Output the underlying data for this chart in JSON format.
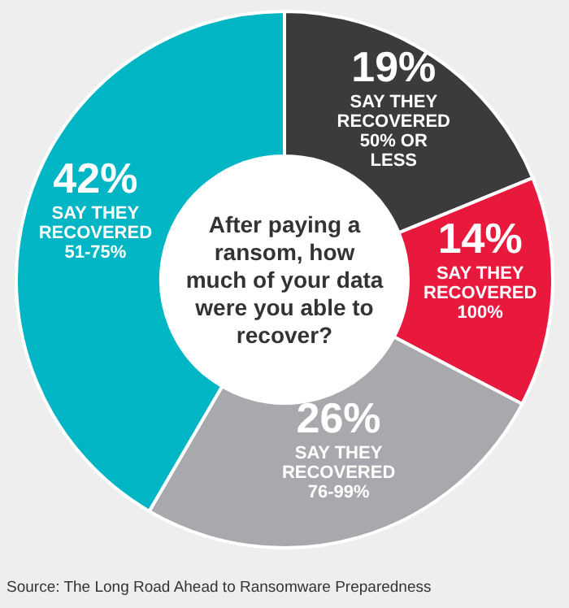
{
  "chart_data": {
    "type": "donut",
    "title": "After paying a ransom, how much of your data were you able to recover?",
    "categories": [
      "SAY THEY RECOVERED 50% OR LESS",
      "SAY THEY RECOVERED 100%",
      "SAY THEY RECOVERED 76-99%",
      "SAY THEY RECOVERED 51-75%"
    ],
    "values": [
      19,
      14,
      26,
      42
    ],
    "value_labels": [
      "19%",
      "14%",
      "26%",
      "42%"
    ],
    "colors": [
      "#3b3b3d",
      "#e8193c",
      "#a8a9ad",
      "#00b5c4"
    ],
    "annotations": [
      "Source: The Long Road Ahead to Ransomware Preparedness"
    ]
  }
}
